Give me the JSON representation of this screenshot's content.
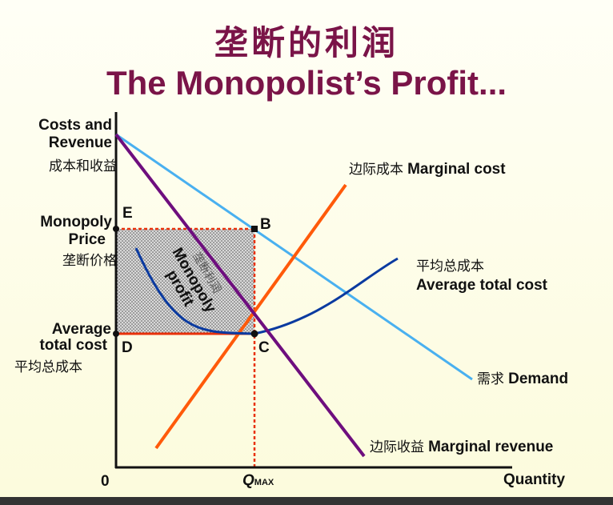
{
  "title": {
    "zh": "垄断的利润",
    "en": "The Monopolist’s Profit..."
  },
  "y_axis": {
    "label_line1": "Costs and",
    "label_line2": "Revenue",
    "label_zh": "成本和收益"
  },
  "x_axis": {
    "origin": "0",
    "q_symbol": "Q",
    "q_subscript": "MAX",
    "label": "Quantity"
  },
  "levels": {
    "price": {
      "line1": "Monopoly",
      "line2": "Price",
      "zh": "垄断价格"
    },
    "atc": {
      "line1": "Average",
      "line2": "total cost",
      "zh": "平均总成本"
    }
  },
  "points": {
    "E": "E",
    "B": "B",
    "C": "C",
    "D": "D"
  },
  "curves": {
    "marginal_cost": {
      "zh": "边际成本",
      "en": "Marginal cost",
      "color": "#ff5a0a"
    },
    "average_total_cost": {
      "zh": "平均总成本",
      "en": "Average total cost",
      "color": "#0a3aa0"
    },
    "demand": {
      "zh": "需求",
      "en": "Demand",
      "color": "#49b0f0"
    },
    "marginal_revenue": {
      "zh": "边际收益",
      "en": "Marginal revenue",
      "color": "#6e0e7e"
    }
  },
  "profit_area": {
    "en_line1": "Monopoly",
    "en_line2": "profit",
    "zh": "垄断利润"
  },
  "colors": {
    "title": "#7a1448",
    "guide_red": "#e8300a",
    "profit_fill": "#bfbfbf"
  }
}
